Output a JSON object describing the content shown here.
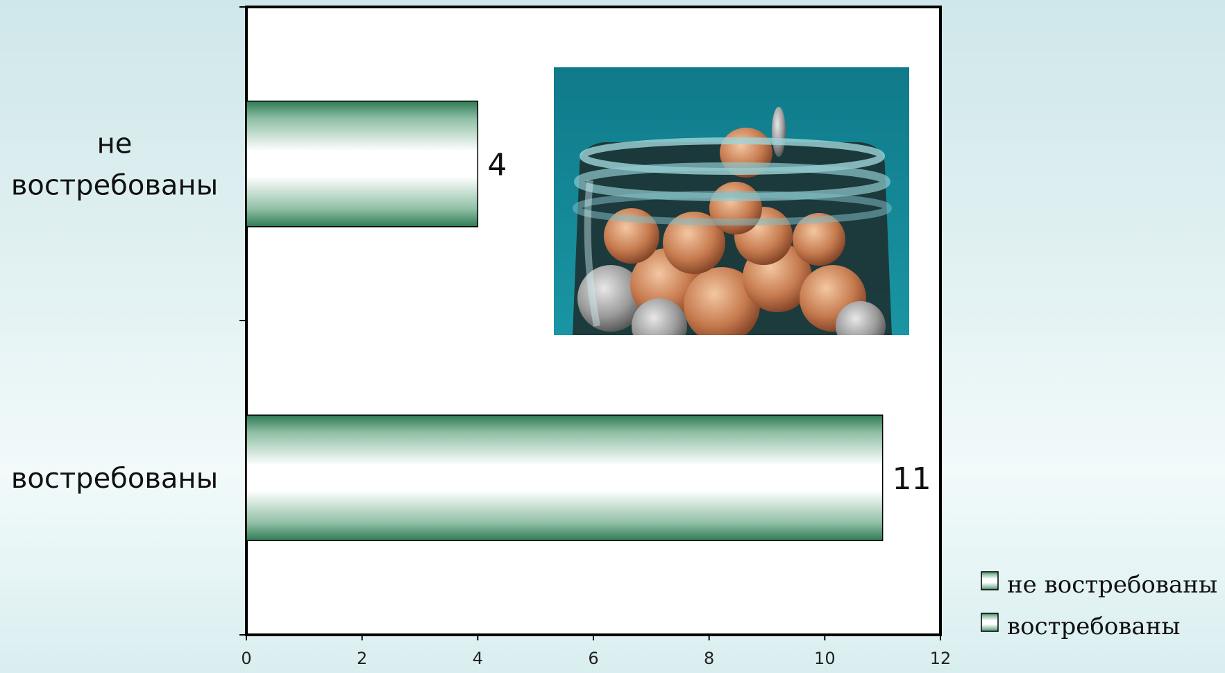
{
  "chart_data": {
    "type": "bar",
    "orientation": "horizontal",
    "categories": [
      "не востребованы",
      "востребованы"
    ],
    "values": [
      4,
      11
    ],
    "xlim": [
      0,
      12
    ],
    "xticks": [
      0,
      2,
      4,
      6,
      8,
      10,
      12
    ],
    "title": "",
    "xlabel": "",
    "ylabel": "",
    "legend": {
      "placement": "bottom-right",
      "entries": [
        "не востребованы",
        "востребованы"
      ]
    },
    "grid": false,
    "colors": {
      "bar_edge": "#2f7a55",
      "bar_center": "#ffffff",
      "axis": "#000000"
    }
  },
  "image": {
    "depicts": "jar-of-coins"
  }
}
